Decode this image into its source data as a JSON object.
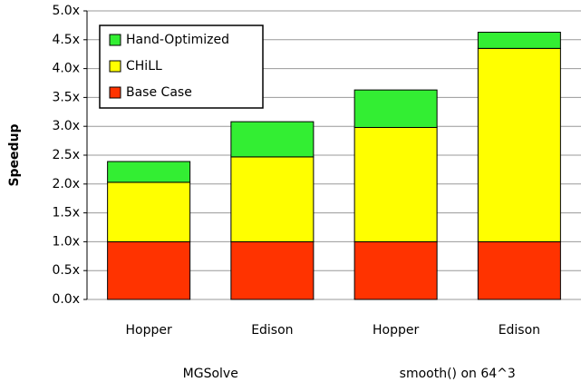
{
  "chart_data": {
    "type": "stacked_bar",
    "y_label": "Speedup",
    "categories": [
      "Hopper",
      "Edison",
      "Hopper",
      "Edison"
    ],
    "groups": [
      {
        "name": "MGSolve",
        "size": 2
      },
      {
        "name": "smooth() on 64^3",
        "size": 2
      }
    ],
    "series": [
      {
        "name": "Base Case",
        "color": "#ff3300",
        "values": [
          1.0,
          1.0,
          1.0,
          1.0
        ]
      },
      {
        "name": "CHiLL",
        "color": "#ffff00",
        "values": [
          1.03,
          1.47,
          1.98,
          3.35
        ]
      },
      {
        "name": "Hand-Optimized",
        "color": "#33ee33",
        "values": [
          0.36,
          0.61,
          0.65,
          0.28
        ]
      }
    ],
    "ylim": [
      0,
      5
    ],
    "yticks": [
      {
        "value": 0,
        "label": "0.0x"
      },
      {
        "value": 0.5,
        "label": "0.5x"
      },
      {
        "value": 1,
        "label": "1.0x"
      },
      {
        "value": 1.5,
        "label": "1.5x"
      },
      {
        "value": 2,
        "label": "2.0x"
      },
      {
        "value": 2.5,
        "label": "2.5x"
      },
      {
        "value": 3,
        "label": "3.0x"
      },
      {
        "value": 3.5,
        "label": "3.5x"
      },
      {
        "value": 4,
        "label": "4.0x"
      },
      {
        "value": 4.5,
        "label": "4.5x"
      },
      {
        "value": 5,
        "label": "5.0x"
      }
    ],
    "grid": true,
    "legend": "upper left"
  }
}
